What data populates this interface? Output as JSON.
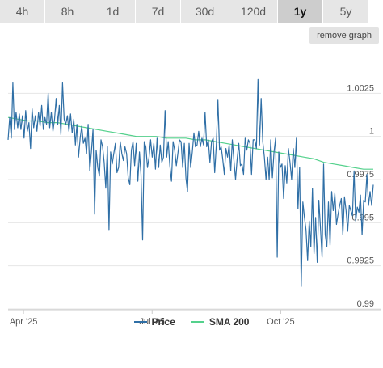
{
  "ranges": [
    {
      "label": "4h",
      "active": false
    },
    {
      "label": "8h",
      "active": false
    },
    {
      "label": "1d",
      "active": false
    },
    {
      "label": "7d",
      "active": false
    },
    {
      "label": "30d",
      "active": false
    },
    {
      "label": "120d",
      "active": false
    },
    {
      "label": "1y",
      "active": true
    },
    {
      "label": "5y",
      "active": false
    }
  ],
  "remove_graph_label": "remove graph",
  "colors": {
    "price": "#2f6fa6",
    "sma": "#54d18c",
    "grid": "#e6e6e6",
    "axis_text": "#555555"
  },
  "chart_data": {
    "type": "line",
    "x_ticks": [
      {
        "label": "Apr '25",
        "x": 2025.25
      },
      {
        "label": "Jul '25",
        "x": 2025.5
      },
      {
        "label": "Oct '25",
        "x": 2025.75
      }
    ],
    "y_ticks": [
      {
        "label": "1.0025",
        "y": 1.0025
      },
      {
        "label": "1",
        "y": 1.0
      },
      {
        "label": "0.9975",
        "y": 0.9975
      },
      {
        "label": "0.995",
        "y": 0.995
      },
      {
        "label": "0.9925",
        "y": 0.9925
      },
      {
        "label": "0.99",
        "y": 0.99
      }
    ],
    "xlim": [
      2025.22,
      2025.93
    ],
    "ylim": [
      0.99,
      1.005
    ],
    "grid": true,
    "legend_position": "bottom",
    "series": [
      {
        "name": "Price",
        "color": "#2f6fa6",
        "y": [
          0.9998,
          1.0011,
          0.9999,
          1.0031,
          1.0004,
          1.0014,
          1.0005,
          1.0013,
          1.0004,
          1.0012,
          0.9999,
          1.0015,
          1.0003,
          1.0008,
          0.9993,
          1.0016,
          1.0005,
          1.0012,
          1.0003,
          1.0014,
          1.0006,
          1.0018,
          1.0004,
          1.0011,
          1.0007,
          1.0025,
          1.0005,
          1.0014,
          1.0003,
          1.001,
          1.0022,
          1.0007,
          1.0018,
          1.0001,
          1.0031,
          1.001,
          1.0007,
          1.0012,
          1.0003,
          1.0013,
          1.0002,
          1.001,
          0.9995,
          1.0007,
          0.9988,
          0.9999,
          1.0006,
          0.9996,
          0.9999,
          0.999,
          1.0007,
          0.998,
          0.9991,
          1.0004,
          0.9955,
          0.9992,
          0.9982,
          0.9977,
          0.9998,
          0.9994,
          0.9985,
          0.997,
          0.9994,
          0.9946,
          0.9991,
          0.9984,
          0.999,
          0.9996,
          0.9979,
          0.9982,
          0.9997,
          0.999,
          0.9986,
          0.9994,
          0.999,
          0.9976,
          0.9972,
          0.9992,
          0.9997,
          0.9983,
          0.9996,
          0.9974,
          0.9991,
          0.9978,
          0.994,
          0.9997,
          0.9994,
          0.9982,
          0.9988,
          0.9998,
          0.9988,
          0.9996,
          0.9981,
          0.9999,
          0.9982,
          0.9995,
          0.9985,
          0.9988,
          1.0015,
          0.9988,
          0.9997,
          0.9983,
          0.9974,
          0.9997,
          0.9992,
          0.9983,
          0.999,
          0.9998,
          0.9997,
          0.9982,
          0.9996,
          0.9976,
          0.9968,
          0.9996,
          0.9982,
          0.9991,
          1.0002,
          0.9994,
          0.9995,
          1.0003,
          0.9994,
          0.9999,
          0.9995,
          1.0014,
          0.9994,
          0.9998,
          0.9985,
          0.9997,
          0.9999,
          0.9979,
          0.9995,
          1.0021,
          0.9992,
          0.9994,
          0.9987,
          0.9978,
          0.9993,
          0.9988,
          0.9995,
          0.998,
          0.9998,
          0.9986,
          0.9975,
          0.9987,
          0.9996,
          0.9983,
          0.9984,
          0.9978,
          0.9999,
          0.9992,
          0.9998,
          0.9996,
          0.9978,
          0.9998,
          0.9998,
          0.9993,
          1.0033,
          0.9995,
          1.0022,
          0.9997,
          0.9988,
          0.9975,
          0.9988,
          0.9975,
          0.9998,
          0.9976,
          0.9991,
          0.9999,
          0.993,
          0.9991,
          0.9982,
          0.9984,
          0.9964,
          0.9983,
          0.9973,
          0.9993,
          0.9985,
          0.9975,
          0.9993,
          0.9982,
          0.9999,
          0.9958,
          0.9982,
          0.9913,
          0.9962,
          0.9953,
          0.9946,
          0.9928,
          0.9951,
          0.9936,
          0.997,
          0.9932,
          0.9953,
          0.9927,
          0.9963,
          0.9947,
          0.993,
          0.9984,
          0.9943,
          0.9936,
          0.9962,
          0.9937,
          0.9968,
          0.9957,
          0.9967,
          0.9949,
          0.9955,
          0.996,
          0.9964,
          0.9943,
          0.9965,
          0.9957,
          0.9945,
          0.996,
          0.9957,
          0.9954,
          0.998,
          0.9951,
          0.9959,
          0.9956,
          0.9966,
          0.9943,
          0.9963,
          0.9962,
          0.9978,
          0.996,
          0.9968,
          0.996,
          0.9972
        ]
      },
      {
        "name": "SMA 200",
        "color": "#54d18c",
        "y": [
          1.0011,
          1.001,
          1.0009,
          1.0009,
          1.0008,
          1.0008,
          1.0007,
          1.0006,
          1.0005,
          1.0004,
          1.0003,
          1.0002,
          1.0001,
          1.0,
          1.0,
          1.0,
          0.9999,
          0.9999,
          0.9999,
          0.9998,
          0.9998,
          0.9997,
          0.9996,
          0.9995,
          0.9994,
          0.9993,
          0.9992,
          0.9991,
          0.999,
          0.9989,
          0.9988,
          0.9987,
          0.9985,
          0.9984,
          0.9983,
          0.9982,
          0.9981,
          0.9981
        ]
      }
    ]
  }
}
